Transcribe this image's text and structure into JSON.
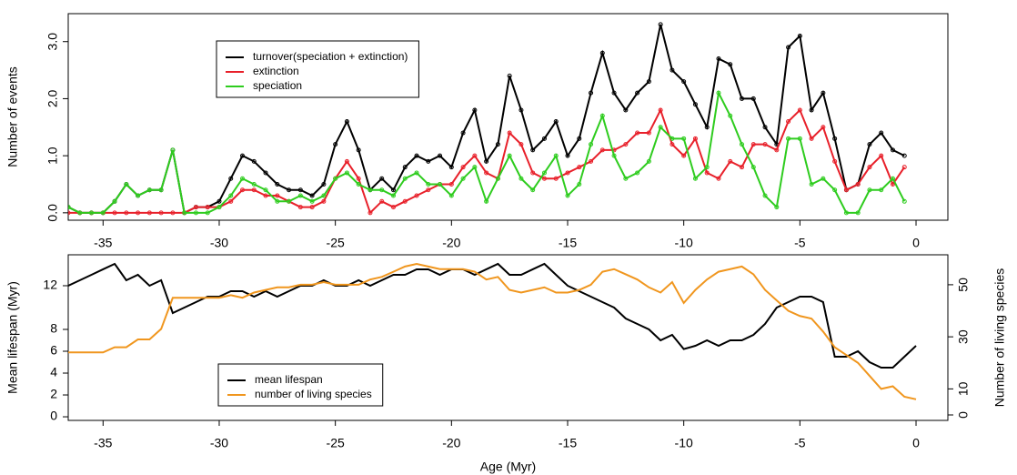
{
  "chart_data": [
    {
      "type": "line",
      "ylabel": "Number of events",
      "markers": true,
      "x": [
        -36.5,
        -36,
        -35.5,
        -35,
        -34.5,
        -34,
        -33.5,
        -33,
        -32.5,
        -32,
        -31.5,
        -31,
        -30.5,
        -30,
        -29.5,
        -29,
        -28.5,
        -28,
        -27.5,
        -27,
        -26.5,
        -26,
        -25.5,
        -25,
        -24.5,
        -24,
        -23.5,
        -23,
        -22.5,
        -22,
        -21.5,
        -21,
        -20.5,
        -20,
        -19.5,
        -19,
        -18.5,
        -18,
        -17.5,
        -17,
        -16.5,
        -16,
        -15.5,
        -15,
        -14.5,
        -14,
        -13.5,
        -13,
        -12.5,
        -12,
        -11.5,
        -11,
        -10.5,
        -10,
        -9.5,
        -9,
        -8.5,
        -8,
        -7.5,
        -7,
        -6.5,
        -6,
        -5.5,
        -5,
        -4.5,
        -4,
        -3.5,
        -3,
        -2.5,
        -2,
        -1.5,
        -1,
        -0.5
      ],
      "series": [
        {
          "name": "turnover(speciation + extinction)",
          "color": "#000000",
          "values": [
            0.1,
            0,
            0,
            0,
            0.2,
            0.5,
            0.3,
            0.4,
            0.4,
            1.1,
            0,
            0.1,
            0.1,
            0.2,
            0.6,
            1.0,
            0.9,
            0.7,
            0.5,
            0.4,
            0.4,
            0.3,
            0.5,
            1.2,
            1.6,
            1.1,
            0.4,
            0.6,
            0.4,
            0.8,
            1.0,
            0.9,
            1.0,
            0.8,
            1.4,
            1.8,
            0.9,
            1.2,
            2.4,
            1.8,
            1.1,
            1.3,
            1.6,
            1.0,
            1.3,
            2.1,
            2.8,
            2.1,
            1.8,
            2.1,
            2.3,
            3.3,
            2.5,
            2.3,
            1.9,
            1.5,
            2.7,
            2.6,
            2.0,
            2.0,
            1.5,
            1.2,
            2.9,
            3.1,
            1.8,
            2.1,
            1.3,
            0.4,
            0.5,
            1.2,
            1.4,
            1.1,
            1.0
          ]
        },
        {
          "name": "extinction",
          "color": "#e8202a",
          "values": [
            0,
            0,
            0,
            0,
            0,
            0,
            0,
            0,
            0,
            0,
            0,
            0.1,
            0.1,
            0.1,
            0.2,
            0.4,
            0.4,
            0.3,
            0.3,
            0.2,
            0.1,
            0.1,
            0.2,
            0.6,
            0.9,
            0.6,
            0,
            0.2,
            0.1,
            0.2,
            0.3,
            0.4,
            0.5,
            0.5,
            0.8,
            1.0,
            0.7,
            0.6,
            1.4,
            1.2,
            0.7,
            0.6,
            0.6,
            0.7,
            0.8,
            0.9,
            1.1,
            1.1,
            1.2,
            1.4,
            1.4,
            1.8,
            1.2,
            1.0,
            1.3,
            0.7,
            0.6,
            0.9,
            0.8,
            1.2,
            1.2,
            1.1,
            1.6,
            1.8,
            1.3,
            1.5,
            0.9,
            0.4,
            0.5,
            0.8,
            1.0,
            0.5,
            0.8
          ]
        },
        {
          "name": "speciation",
          "color": "#2ecc1e",
          "values": [
            0.1,
            0,
            0,
            0,
            0.2,
            0.5,
            0.3,
            0.4,
            0.4,
            1.1,
            0,
            0,
            0,
            0.1,
            0.3,
            0.6,
            0.5,
            0.4,
            0.2,
            0.2,
            0.3,
            0.2,
            0.3,
            0.6,
            0.7,
            0.5,
            0.4,
            0.4,
            0.3,
            0.6,
            0.7,
            0.5,
            0.5,
            0.3,
            0.6,
            0.8,
            0.2,
            0.6,
            1.0,
            0.6,
            0.4,
            0.7,
            1.0,
            0.3,
            0.5,
            1.2,
            1.7,
            1.0,
            0.6,
            0.7,
            0.9,
            1.5,
            1.3,
            1.3,
            0.6,
            0.8,
            2.1,
            1.7,
            1.2,
            0.8,
            0.3,
            0.1,
            1.3,
            1.3,
            0.5,
            0.6,
            0.4,
            0.0,
            0.0,
            0.4,
            0.4,
            0.6,
            0.2
          ]
        }
      ],
      "xlim": [
        -36.5,
        1.37
      ],
      "xticks": [
        -35,
        -30,
        -25,
        -20,
        -15,
        -10,
        -5,
        0
      ],
      "ylim": [
        -0.13,
        3.49
      ],
      "yticks": [
        {
          "value": 0,
          "label": "0.0"
        },
        {
          "value": 1,
          "label": "1.0"
        },
        {
          "value": 2,
          "label": "2.0"
        },
        {
          "value": 3,
          "label": "3.0"
        }
      ]
    },
    {
      "type": "line",
      "xlabel": "Age (Myr)",
      "ylabel": "Mean lifespan (Myr)",
      "y2label": "Number of living species",
      "x": [
        -36.5,
        -36,
        -35.5,
        -35,
        -34.5,
        -34,
        -33.5,
        -33,
        -32.5,
        -32,
        -31.5,
        -31,
        -30.5,
        -30,
        -29.5,
        -29,
        -28.5,
        -28,
        -27.5,
        -27,
        -26.5,
        -26,
        -25.5,
        -25,
        -24.5,
        -24,
        -23.5,
        -23,
        -22.5,
        -22,
        -21.5,
        -21,
        -20.5,
        -20,
        -19.5,
        -19,
        -18.5,
        -18,
        -17.5,
        -17,
        -16.5,
        -16,
        -15.5,
        -15,
        -14.5,
        -14,
        -13.5,
        -13,
        -12.5,
        -12,
        -11.5,
        -11,
        -10.5,
        -10,
        -9.5,
        -9,
        -8.5,
        -8,
        -7.5,
        -7,
        -6.5,
        -6,
        -5.5,
        -5,
        -4.5,
        -4,
        -3.5,
        -3,
        -2.5,
        -2,
        -1.5,
        -1,
        -0.5,
        0
      ],
      "series": [
        {
          "name": "mean lifespan",
          "color": "#000000",
          "values": [
            12,
            12.5,
            13,
            13.5,
            14,
            12.5,
            13,
            12,
            12.5,
            9.5,
            10,
            10.5,
            11,
            11,
            11.5,
            11.5,
            11,
            11.5,
            11,
            11.5,
            12,
            12,
            12.5,
            12,
            12,
            12.5,
            12,
            12.5,
            13,
            13,
            13.5,
            13.5,
            13,
            13.5,
            13.5,
            13,
            13.5,
            14,
            13,
            13,
            13.5,
            14,
            13,
            12,
            11.5,
            11,
            10.5,
            10,
            9,
            8.5,
            8,
            7,
            7.5,
            6.2,
            6.5,
            7,
            6.5,
            7,
            7,
            7.5,
            8.5,
            10,
            10.5,
            11,
            11,
            10.5,
            5.5,
            5.5,
            6,
            5,
            4.5,
            4.5,
            5.5,
            6.5
          ]
        },
        {
          "name": "number of living species",
          "color": "#f0961e",
          "axis": "y2",
          "values": [
            24,
            24,
            24,
            24,
            26,
            26,
            29,
            29,
            33,
            45,
            45,
            45,
            45,
            45,
            46,
            45,
            47,
            48,
            49,
            49,
            50,
            50,
            51,
            50,
            50,
            50,
            52,
            53,
            55,
            57,
            58,
            57,
            56,
            56,
            56,
            55,
            52,
            53,
            48,
            47,
            48,
            49,
            47,
            47,
            48,
            50,
            55,
            56,
            54,
            52,
            49,
            47,
            51,
            43,
            48,
            52,
            55,
            56,
            57,
            54,
            48,
            44,
            40,
            38,
            37,
            32,
            26,
            23,
            20,
            15,
            10,
            11,
            7,
            6
          ]
        }
      ],
      "xlim": [
        -36.5,
        1.37
      ],
      "xticks": [
        -35,
        -30,
        -25,
        -20,
        -15,
        -10,
        -5,
        0
      ],
      "ylim": [
        -0.33,
        14.83
      ],
      "yticks": [
        0,
        2,
        4,
        6,
        8,
        12
      ],
      "y2lim": [
        -2.1,
        61.5
      ],
      "y2ticks": [
        0,
        10,
        30,
        50
      ]
    }
  ]
}
